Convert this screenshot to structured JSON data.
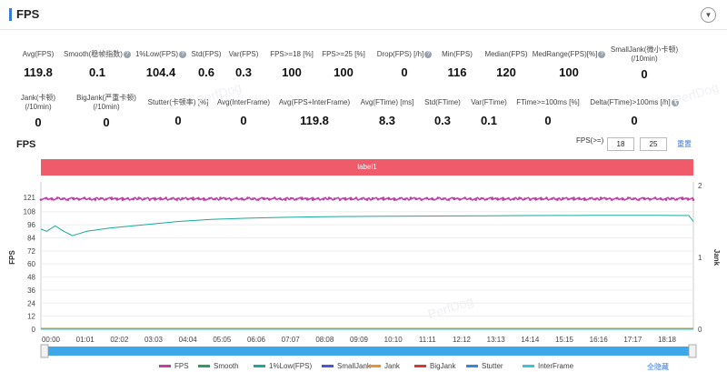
{
  "header": {
    "title": "FPS",
    "collapse_icon": "chevron-down-icon"
  },
  "metrics_row1": [
    {
      "label": "Avg(FPS)",
      "value": "119.8",
      "help": false
    },
    {
      "label": "Smooth(稳帧指数)",
      "value": "0.1",
      "help": true
    },
    {
      "label": "1%Low(FPS)",
      "value": "104.4",
      "help": true
    },
    {
      "label": "Std(FPS)",
      "value": "0.6",
      "help": false
    },
    {
      "label": "Var(FPS)",
      "value": "0.3",
      "help": false
    },
    {
      "label": "FPS>=18 [%]",
      "value": "100",
      "help": false
    },
    {
      "label": "FPS>=25 [%]",
      "value": "100",
      "help": false
    },
    {
      "label": "Drop(FPS) [/h]",
      "value": "0",
      "help": true
    },
    {
      "label": "Min(FPS)",
      "value": "116",
      "help": false
    },
    {
      "label": "Median(FPS)",
      "value": "120",
      "help": false
    },
    {
      "label": "MedRange(FPS)[%]",
      "value": "100",
      "help": true
    },
    {
      "label": "SmallJank(微小卡顿)",
      "label2": "(/10min)",
      "value": "0",
      "help": false
    }
  ],
  "metrics_row2": [
    {
      "label": "Jank(卡顿)",
      "label2": "(/10min)",
      "value": "0",
      "help": false
    },
    {
      "label": "BigJank(严重卡顿)",
      "label2": "(/10min)",
      "value": "0",
      "help": false
    },
    {
      "label": "Stutter(卡顿率) [%]",
      "value": "0",
      "help": false
    },
    {
      "label": "Avg(InterFrame)",
      "value": "0",
      "help": false
    },
    {
      "label": "Avg(FPS+InterFrame)",
      "value": "119.8",
      "help": false
    },
    {
      "label": "Avg(FTime) [ms]",
      "value": "8.3",
      "help": false
    },
    {
      "label": "Std(FTime)",
      "value": "0.3",
      "help": false
    },
    {
      "label": "Var(FTime)",
      "value": "0.1",
      "help": false
    },
    {
      "label": "FTime>=100ms [%]",
      "value": "0",
      "help": false
    },
    {
      "label": "Delta(FTime)>100ms [/h]",
      "value": "0",
      "help": true
    }
  ],
  "chart_controls": {
    "title": "FPS",
    "threshold_label": "FPS(>=)",
    "threshold_1": "18",
    "threshold_2": "25",
    "reset_label": "重置"
  },
  "label_band": "label1",
  "watermark": "PerfDog",
  "chart_data": {
    "type": "line",
    "x_ticks": [
      "00:00",
      "01:01",
      "02:02",
      "03:03",
      "04:04",
      "05:05",
      "06:06",
      "07:07",
      "08:08",
      "09:09",
      "10:10",
      "11:11",
      "12:12",
      "13:13",
      "14:14",
      "15:15",
      "16:16",
      "17:17",
      "18:18"
    ],
    "y_left_label": "FPS",
    "y_left_ticks": [
      0,
      12,
      24,
      36,
      48,
      60,
      72,
      84,
      96,
      108,
      121
    ],
    "y_left_lim": [
      0,
      132
    ],
    "y_right_label": "Jank",
    "y_right_ticks": [
      0,
      1,
      2
    ],
    "y_right_lim": [
      0,
      2
    ],
    "duration_s": 1138,
    "series": [
      {
        "name": "FPS",
        "color": "#c03fa8",
        "values_time": [
          0,
          60,
          150,
          300,
          450,
          600,
          750,
          900,
          1050,
          1138
        ],
        "values": [
          119.8,
          119.5,
          119.9,
          119.8,
          119.7,
          119.9,
          119.8,
          119.6,
          119.8,
          119.8
        ]
      },
      {
        "name": "Smooth",
        "color": "#2e9e5b",
        "values_time": [
          0,
          1138
        ],
        "values": [
          0.1,
          0.1
        ]
      },
      {
        "name": "1%Low(FPS)",
        "color": "#1aa89a",
        "values_time": [
          0,
          10,
          25,
          40,
          55,
          80,
          120,
          180,
          240,
          300,
          360,
          420,
          480,
          540,
          600,
          660,
          720,
          780,
          840,
          900,
          960,
          1020,
          1080,
          1130,
          1138
        ],
        "values": [
          92,
          90,
          95,
          90,
          86,
          90,
          93,
          96,
          99,
          101,
          102,
          102.8,
          103.3,
          103.6,
          103.8,
          103.9,
          104.1,
          104.2,
          104.4,
          104.5,
          104.6,
          104.7,
          104.6,
          104.4,
          99
        ]
      },
      {
        "name": "SmallJank",
        "color": "#4b55d6",
        "values_time": [
          0,
          1138
        ],
        "values": [
          0,
          0
        ]
      },
      {
        "name": "Jank",
        "color": "#e8903a",
        "values_time": [
          0,
          1138
        ],
        "values": [
          0,
          0
        ]
      },
      {
        "name": "BigJank",
        "color": "#d03a3a",
        "values_time": [
          0,
          1138
        ],
        "values": [
          0,
          0
        ]
      },
      {
        "name": "Stutter",
        "color": "#3a86d6",
        "values_time": [
          0,
          1138
        ],
        "values": [
          0,
          0
        ]
      },
      {
        "name": "InterFrame",
        "color": "#35c7d8",
        "values_time": [
          0,
          1138
        ],
        "values": [
          0,
          0
        ]
      }
    ]
  },
  "legend_show_all": "全隐藏"
}
